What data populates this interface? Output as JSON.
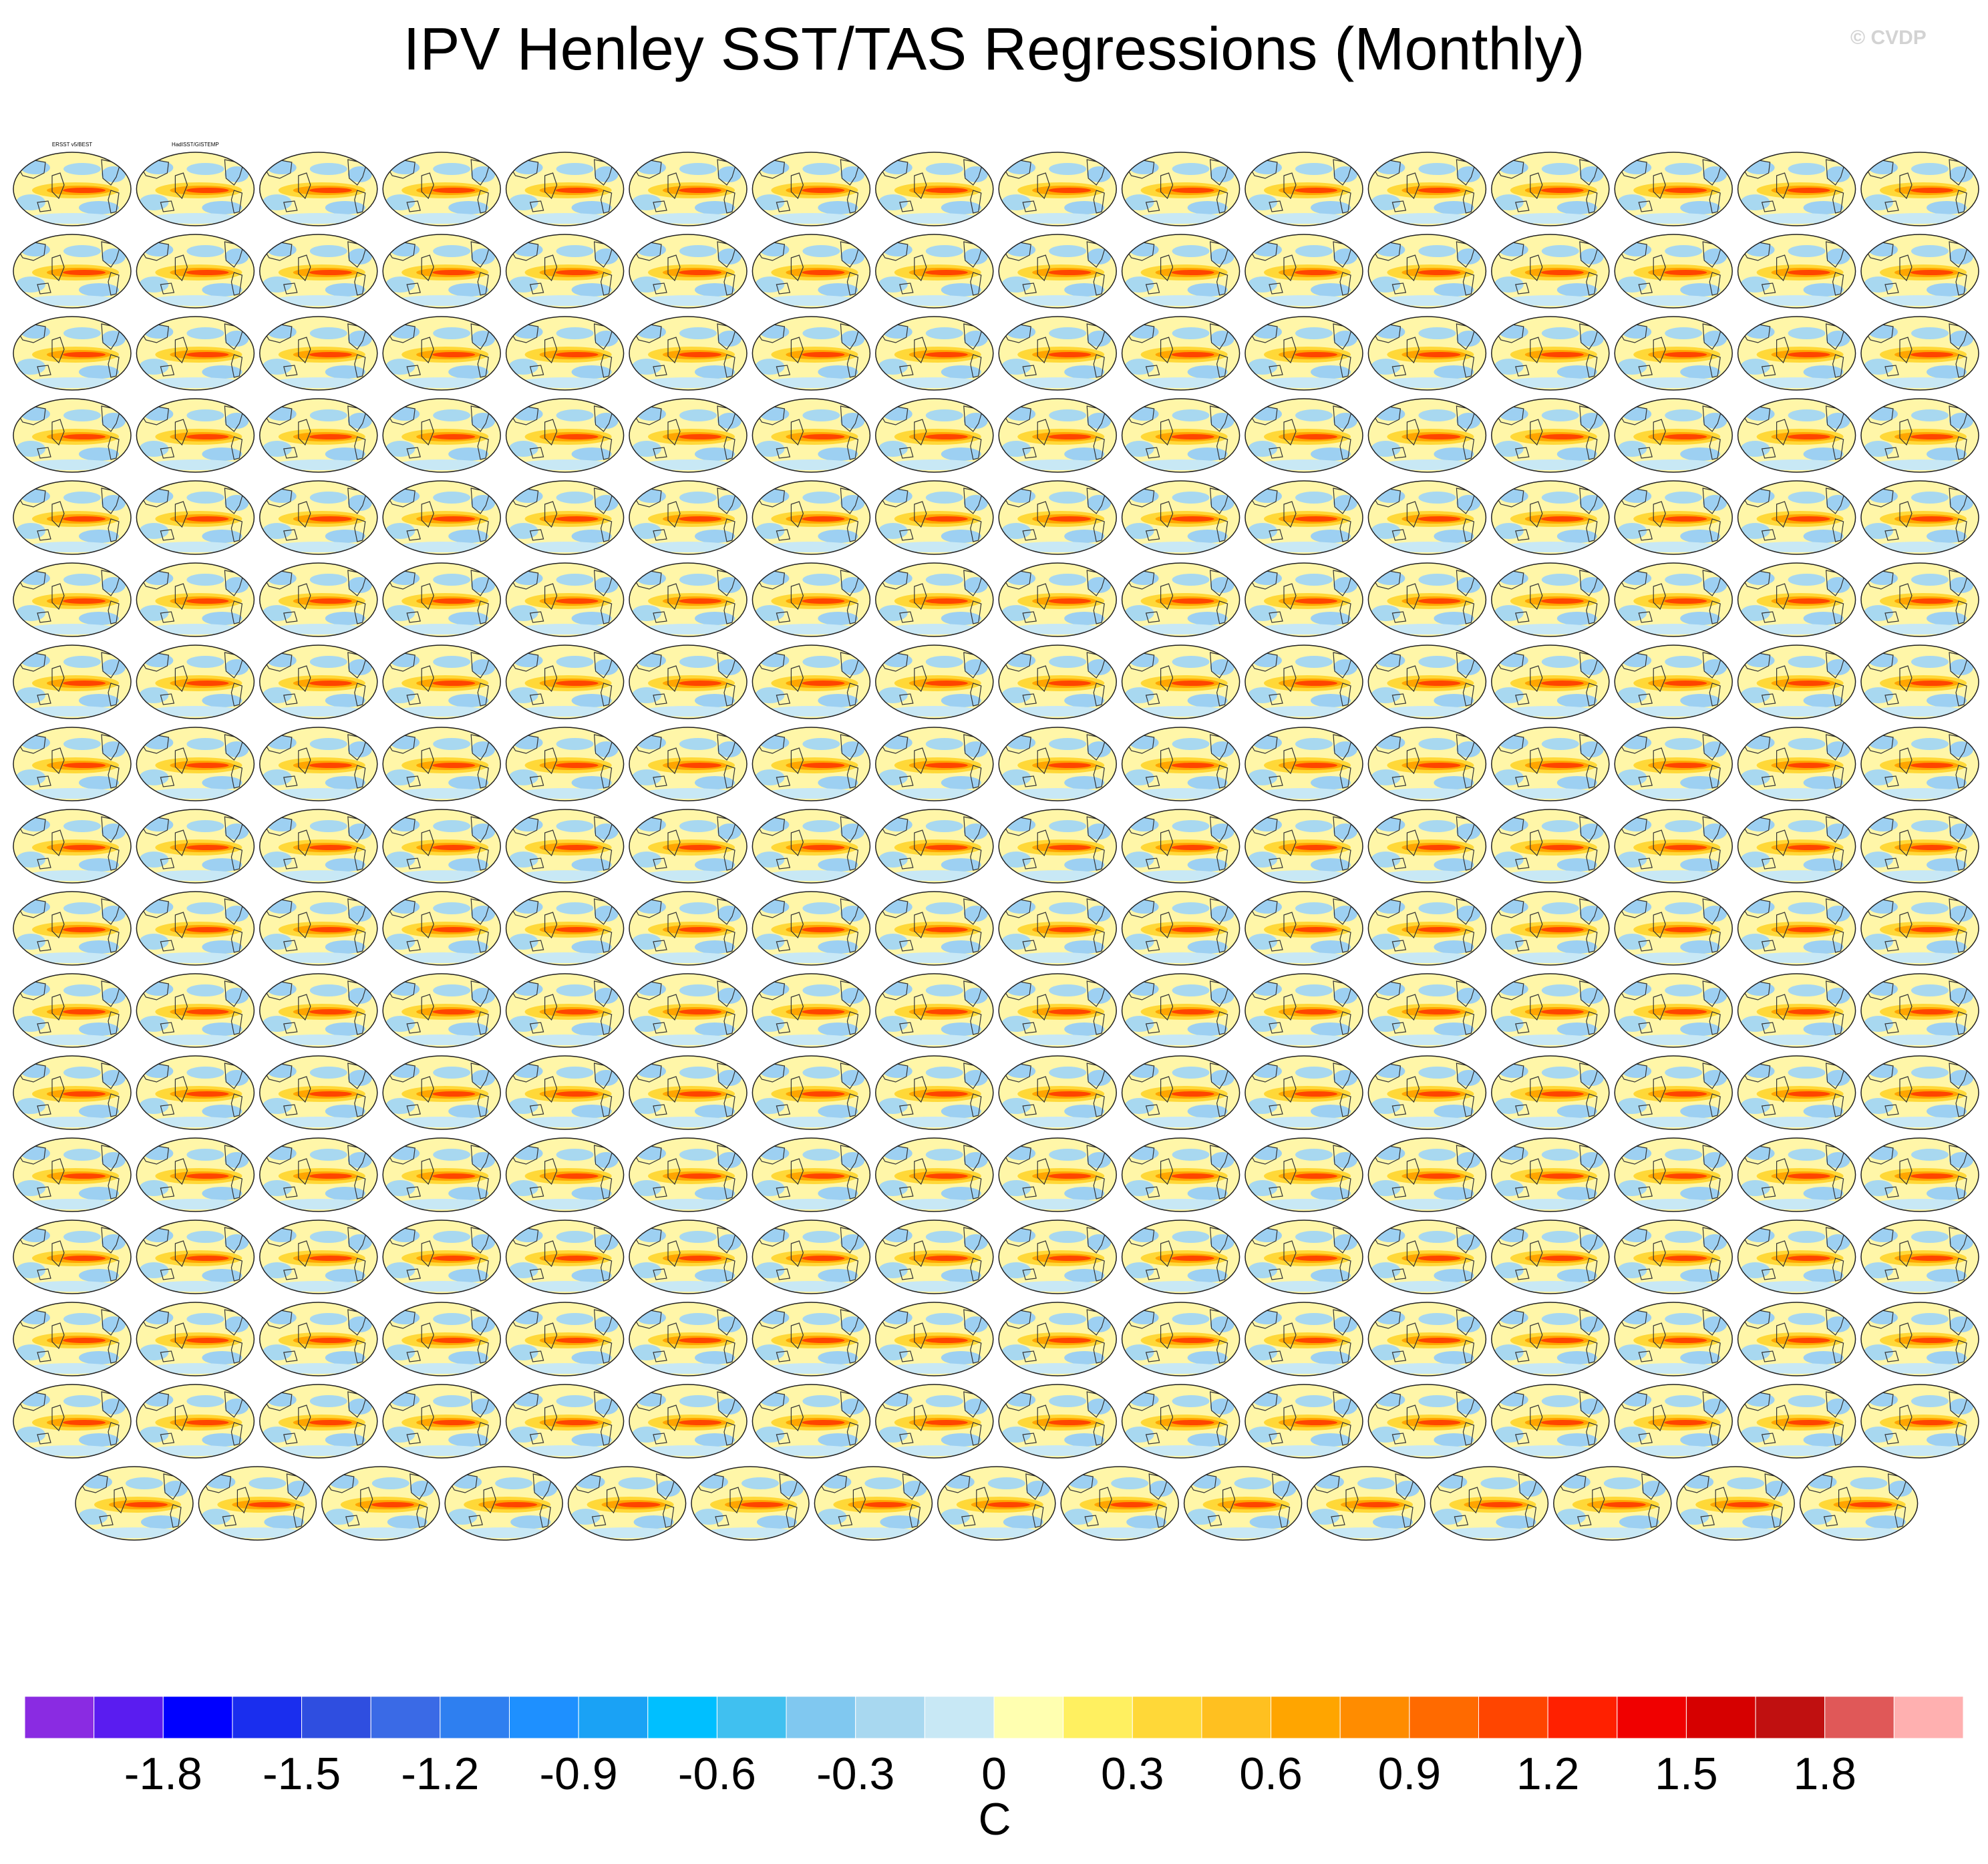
{
  "title": "IPV Henley SST/TAS Regressions (Monthly)",
  "watermark": "© CVDP",
  "colorbar": {
    "unit": "C",
    "tick_labels": [
      "-1.8",
      "-1.5",
      "-1.2",
      "-0.9",
      "-0.6",
      "-0.3",
      "0",
      "0.3",
      "0.6",
      "0.9",
      "1.2",
      "1.5",
      "1.8"
    ],
    "colors": [
      "#8a2be2",
      "#5a1cf0",
      "#0000ff",
      "#1a2eee",
      "#2f4ee0",
      "#3a6ae6",
      "#2e7ff0",
      "#1e90ff",
      "#1aa2f5",
      "#00bfff",
      "#40c0f0",
      "#80c8f0",
      "#a8d8f0",
      "#c8e8f5",
      "#ffffb0",
      "#fff060",
      "#ffd838",
      "#ffc020",
      "#ffa500",
      "#ff8c00",
      "#ff6a00",
      "#ff4500",
      "#ff2000",
      "#f00000",
      "#d60000",
      "#c01010",
      "#e05858",
      "#ffb0b0"
    ]
  },
  "panels": {
    "rows": 17,
    "cols": 16,
    "last_row_count": 15,
    "first_titles": [
      "ERSST v5/BEST",
      "HadISST/GISTEMP"
    ]
  }
}
